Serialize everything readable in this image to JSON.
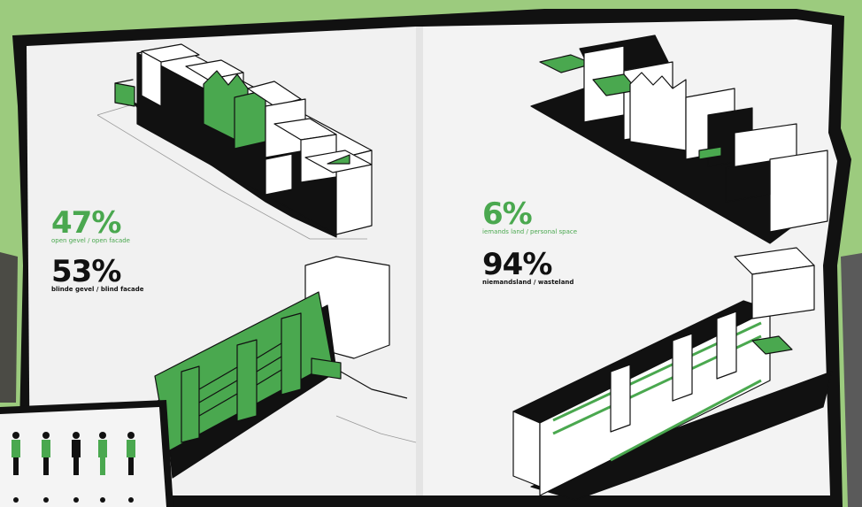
{
  "colors": {
    "background": "#9ccb7e",
    "paper": "#f1f1f1",
    "ink": "#111111",
    "accent": "#4aa84f"
  },
  "left_page": {
    "stat_open": {
      "percent": "47%",
      "caption": "open gevel / open facade"
    },
    "stat_blind": {
      "percent": "53%",
      "caption": "blinde gevel / blind facade"
    }
  },
  "right_page": {
    "stat_personal": {
      "percent": "6%",
      "caption": "iemands land / personal space"
    },
    "stat_wasteland": {
      "percent": "94%",
      "caption": "niemandsland / wasteland"
    }
  }
}
